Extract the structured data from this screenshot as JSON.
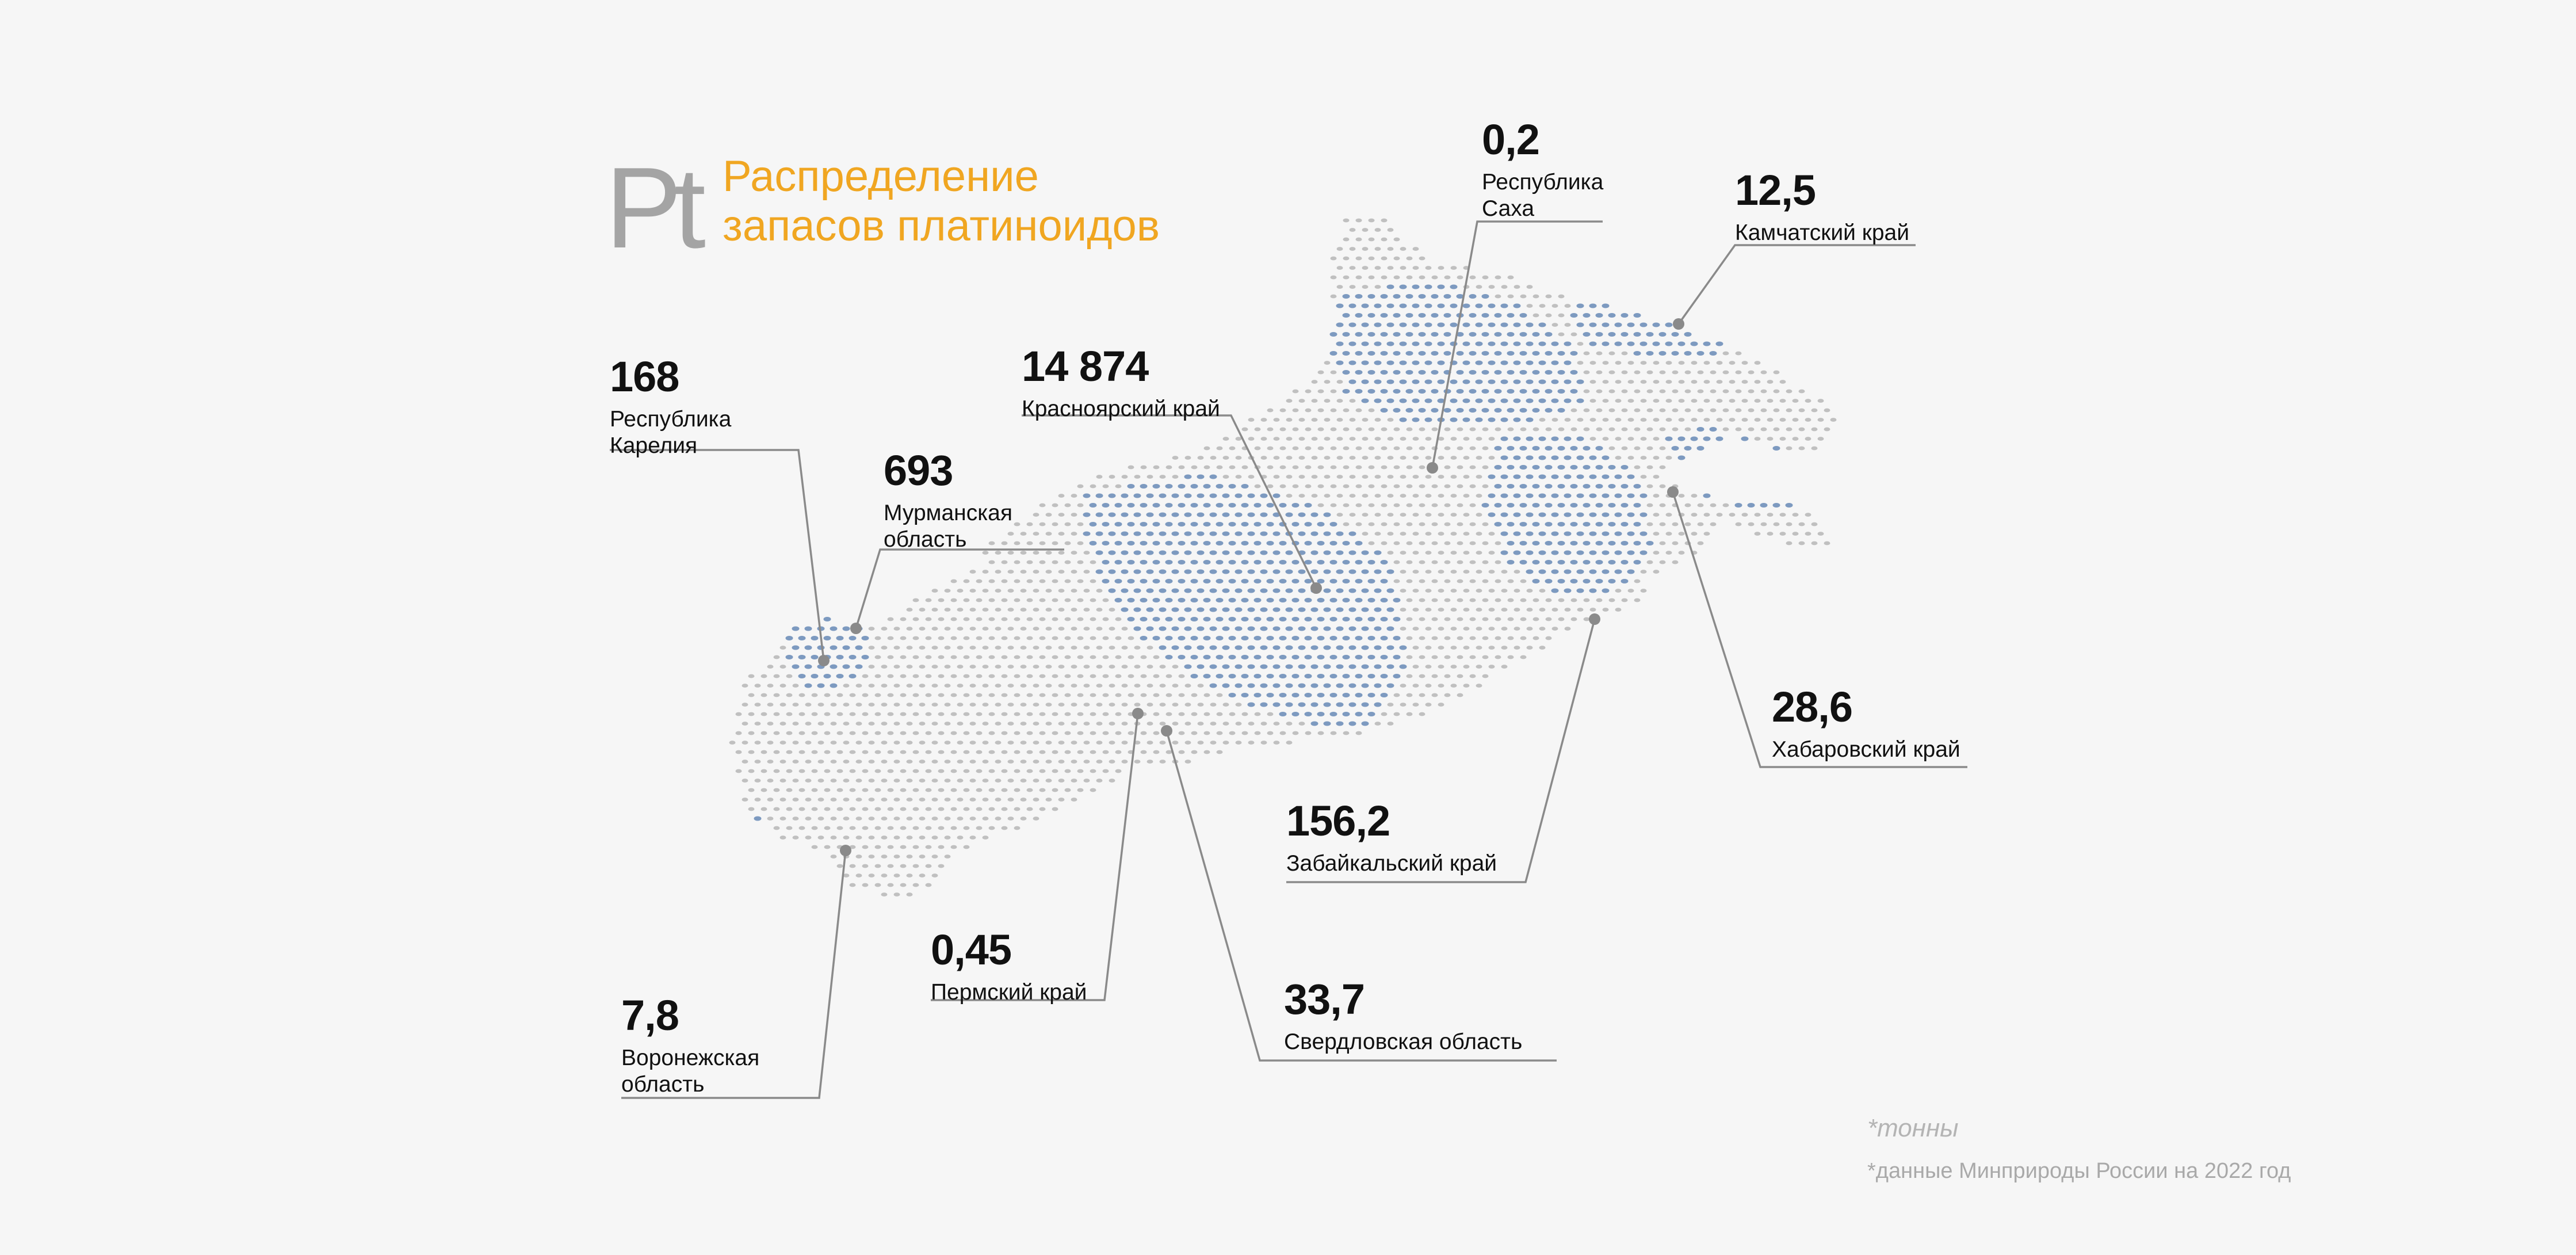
{
  "header": {
    "symbol": "Pt",
    "title_line1": "Распределение",
    "title_line2": "запасов платиноидов"
  },
  "footer": {
    "unit": "*тонны",
    "source": "*данные Минприроды России на 2022 год"
  },
  "colors": {
    "accent": "#f0a621",
    "map_dot": "#c0c0c0",
    "highlight_dot": "#7d9ac0",
    "leader_line": "#8a8a8a",
    "marker": "#8a8a8a"
  },
  "regions": [
    {
      "name": "Республика\nКарелия",
      "value": "168"
    },
    {
      "name": "Мурманская\nобласть",
      "value": "693"
    },
    {
      "name": "Красноярский  край",
      "value": "14 874"
    },
    {
      "name": "Республика\nСаха",
      "value": "0,2"
    },
    {
      "name": "Камчатский край",
      "value": "12,5"
    },
    {
      "name": "Хабаровский край",
      "value": "28,6"
    },
    {
      "name": "Забайкальский край",
      "value": "156,2"
    },
    {
      "name": "Пермский край",
      "value": "0,45"
    },
    {
      "name": "Свердловская область",
      "value": "33,7"
    },
    {
      "name": "Воронежская\nобласть",
      "value": "7,8"
    }
  ]
}
